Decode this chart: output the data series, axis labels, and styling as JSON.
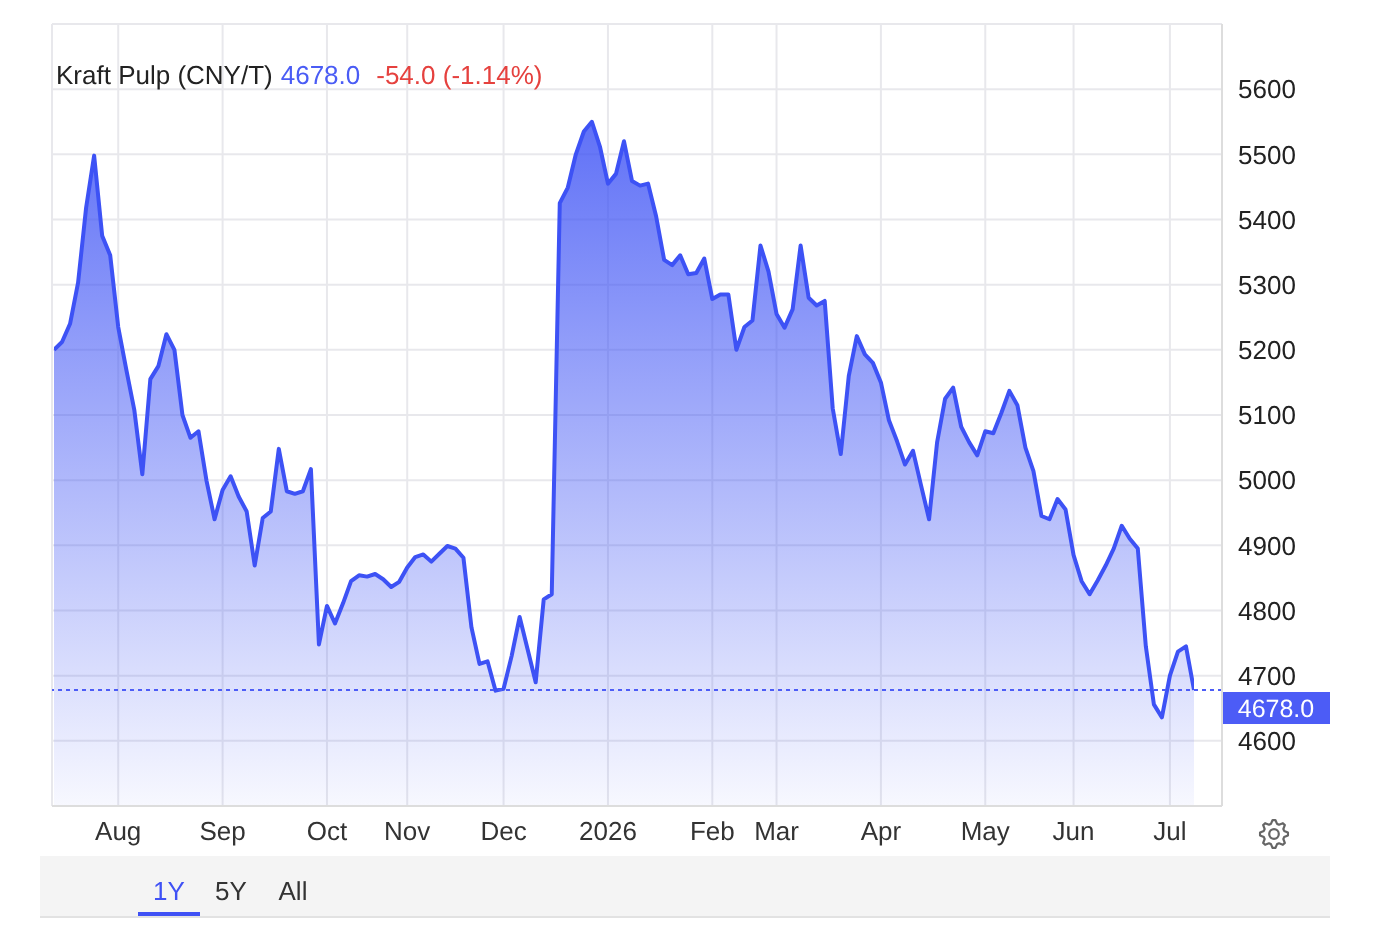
{
  "chart_data": {
    "type": "area",
    "title": "Kraft Pulp (CNY/T)",
    "annotations": [
      "4678.0",
      "-54.0 (-1.14%)",
      "1Y",
      "5Y",
      "All"
    ],
    "categories": [
      null,
      null,
      null,
      null,
      null,
      null,
      null,
      null,
      "Aug",
      null,
      null,
      null,
      null,
      null,
      null,
      null,
      null,
      null,
      null,
      null,
      null,
      "Sep",
      null,
      null,
      null,
      null,
      null,
      null,
      null,
      null,
      null,
      null,
      null,
      null,
      "Oct",
      null,
      null,
      null,
      null,
      null,
      null,
      null,
      null,
      null,
      "Nov",
      null,
      null,
      null,
      null,
      null,
      null,
      null,
      null,
      null,
      null,
      null,
      "Dec",
      null,
      null,
      null,
      null,
      null,
      null,
      null,
      null,
      null,
      null,
      null,
      null,
      "2026",
      null,
      null,
      null,
      null,
      null,
      null,
      null,
      null,
      null,
      null,
      null,
      null,
      "Feb",
      null,
      null,
      null,
      null,
      null,
      null,
      null,
      "Mar",
      null,
      null,
      null,
      null,
      null,
      null,
      null,
      null,
      null,
      null,
      null,
      null,
      "Apr",
      null,
      null,
      null,
      null,
      null,
      null,
      null,
      null,
      null,
      null,
      null,
      null,
      "May",
      null,
      null,
      null,
      null,
      null,
      null,
      null,
      null,
      null,
      null,
      "Jun",
      null,
      null,
      null,
      null,
      null,
      null,
      null,
      null,
      null,
      null,
      null,
      "Jul",
      null,
      null,
      null
    ],
    "series": [
      {
        "color": "#3d52f5",
        "values": [
          5200,
          5212,
          5240,
          5303,
          5418,
          5498,
          5375,
          5345,
          5235,
          5170,
          5108,
          5009,
          5155,
          5175,
          5224,
          5200,
          5100,
          5065,
          5075,
          4999,
          4940,
          4985,
          5006,
          4975,
          4952,
          4869,
          4942,
          4952,
          5048,
          4983,
          4979,
          4983,
          5017,
          4748,
          4807,
          4780,
          4811,
          4845,
          4854,
          4852,
          4856,
          4848,
          4836,
          4844,
          4866,
          4882,
          4886,
          4875,
          4887,
          4899,
          4895,
          4881,
          4774,
          4718,
          4722,
          4677,
          4680,
          4730,
          4790,
          4740,
          4690,
          4817,
          4825,
          5425,
          5449,
          5500,
          5535,
          5550,
          5512,
          5455,
          5470,
          5520,
          5459,
          5452,
          5455,
          5405,
          5338,
          5330,
          5345,
          5316,
          5318,
          5340,
          5278,
          5285,
          5285,
          5200,
          5235,
          5245,
          5360,
          5320,
          5255,
          5234,
          5262,
          5360,
          5280,
          5268,
          5275,
          5110,
          5040,
          5160,
          5221,
          5193,
          5180,
          5150,
          5092,
          5060,
          5024,
          5045,
          4992,
          4940,
          5058,
          5125,
          5142,
          5082,
          5058,
          5038,
          5075,
          5072,
          5103,
          5137,
          5115,
          5050,
          5014,
          4945,
          4940,
          4971,
          4955,
          4885,
          4845,
          4825,
          4846,
          4869,
          4895,
          4930,
          4910,
          4895,
          4745,
          4656,
          4636,
          4700,
          4737,
          4745,
          4678
        ]
      }
    ],
    "ylim": [
      4500,
      5700
    ],
    "yticks": [
      4600,
      4700,
      4800,
      4900,
      5000,
      5100,
      5200,
      5300,
      5400,
      5500,
      5600
    ],
    "grid": true,
    "ref_lines": [
      {
        "axis": "y",
        "value": 4678,
        "label": "4678.0",
        "color": "#4c5cf6",
        "line_style": "dotted"
      }
    ]
  }
}
